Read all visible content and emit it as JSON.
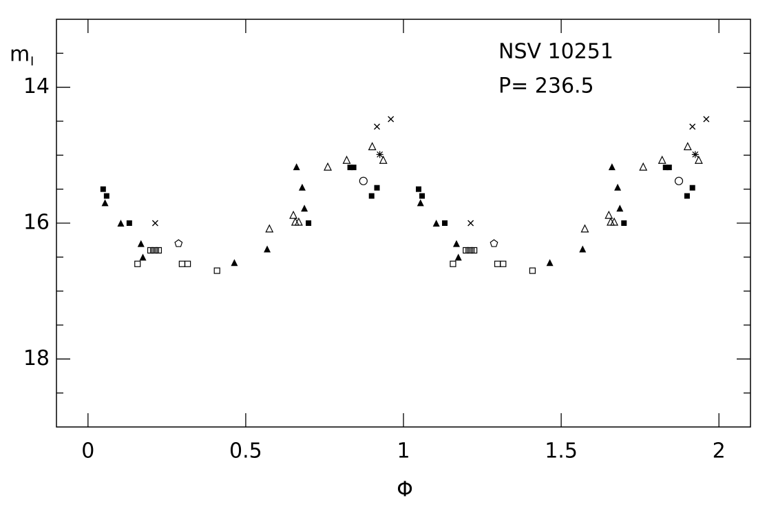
{
  "chart_data": {
    "type": "scatter",
    "xlabel": "Φ",
    "ylabel": "m",
    "ylabel_subscript": "I",
    "annotations": [
      "NSV 10251",
      "P= 236.5"
    ],
    "xlim": [
      -0.1,
      2.1
    ],
    "ylim": [
      19,
      13
    ],
    "xticks": [
      0,
      0.5,
      1,
      1.5,
      2
    ],
    "yticks": [
      14,
      16,
      18
    ],
    "yticks_minor": [
      13.5,
      14.5,
      15,
      15.5,
      16.5,
      17,
      17.5,
      18.5
    ],
    "series": [
      {
        "marker": "filled-triangle",
        "color": "#000000",
        "x": [
          0.054,
          0.104,
          0.168,
          0.174,
          0.464,
          0.568,
          0.661,
          0.679,
          0.686,
          1.054,
          1.104,
          1.168,
          1.174,
          1.464,
          1.568,
          1.661,
          1.679,
          1.686
        ],
        "values": [
          15.7,
          16.0,
          16.3,
          16.5,
          16.58,
          16.38,
          15.17,
          15.47,
          15.78,
          15.7,
          16.0,
          16.3,
          16.5,
          16.58,
          16.38,
          15.17,
          15.47,
          15.78
        ]
      },
      {
        "marker": "filled-square",
        "color": "#000000",
        "x": [
          0.048,
          0.059,
          0.131,
          0.699,
          0.831,
          0.842,
          0.899,
          0.916,
          1.048,
          1.059,
          1.131,
          1.699,
          1.831,
          1.842,
          1.899,
          1.916
        ],
        "values": [
          15.5,
          15.6,
          16.0,
          16.0,
          15.18,
          15.18,
          15.6,
          15.48,
          15.5,
          15.6,
          16.0,
          16.0,
          15.18,
          15.18,
          15.6,
          15.48
        ]
      },
      {
        "marker": "open-triangle",
        "color": "#000000",
        "x": [
          0.575,
          0.651,
          0.657,
          0.668,
          0.76,
          0.82,
          0.901,
          0.936,
          1.575,
          1.651,
          1.657,
          1.668,
          1.76,
          1.82,
          1.901,
          1.936
        ],
        "values": [
          16.08,
          15.88,
          15.98,
          15.98,
          15.17,
          15.07,
          14.87,
          15.07,
          16.08,
          15.88,
          15.98,
          15.98,
          15.17,
          15.07,
          14.87,
          15.07
        ]
      },
      {
        "marker": "open-square",
        "color": "#000000",
        "x": [
          0.157,
          0.298,
          0.316,
          0.409,
          1.157,
          1.298,
          1.316,
          1.409
        ],
        "values": [
          16.6,
          16.6,
          16.6,
          16.7,
          16.6,
          16.6,
          16.6,
          16.7
        ]
      },
      {
        "marker": "barred-square",
        "color": "#000000",
        "x": [
          0.198,
          0.211,
          0.224,
          1.198,
          1.211,
          1.224
        ],
        "values": [
          16.4,
          16.4,
          16.4,
          16.4,
          16.4,
          16.4
        ]
      },
      {
        "marker": "cross",
        "color": "#000000",
        "x": [
          0.213,
          0.916,
          0.96,
          1.213,
          1.916,
          1.96
        ],
        "values": [
          16.0,
          14.58,
          14.47,
          16.0,
          14.58,
          14.47
        ]
      },
      {
        "marker": "open-circle",
        "color": "#000000",
        "x": [
          0.873,
          1.873
        ],
        "values": [
          15.38,
          15.38
        ]
      },
      {
        "marker": "pentagon",
        "color": "#000000",
        "x": [
          0.287,
          1.287
        ],
        "values": [
          16.3,
          16.3
        ]
      },
      {
        "marker": "star",
        "color": "#000000",
        "x": [
          0.925,
          1.925
        ],
        "values": [
          14.99,
          14.99
        ]
      }
    ]
  }
}
